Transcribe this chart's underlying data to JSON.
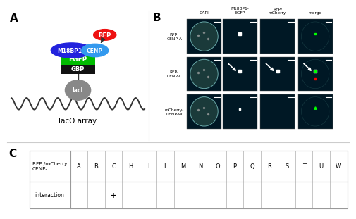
{
  "panel_A_label": "A",
  "panel_B_label": "B",
  "panel_C_label": "C",
  "col_headers": [
    "DAPI",
    "M18BP1-\nEGFP",
    "RFP/\nmCherry",
    "merge"
  ],
  "row_labels": [
    "RFP-\nCENP-A",
    "RFP-\nCENP-C",
    "mCherry-\nCENP-W"
  ],
  "table_col_header1": "RFP /mCherry\nCENP-",
  "table_cenp_letters": [
    "A",
    "B",
    "C",
    "H",
    "I",
    "L",
    "M",
    "N",
    "O",
    "P",
    "Q",
    "R",
    "S",
    "T",
    "U",
    "W"
  ],
  "table_interaction_label": "interaction",
  "table_interaction_values": [
    "-",
    "-",
    "+",
    "-",
    "-",
    "-",
    "-",
    "-",
    "-",
    "-",
    "-",
    "-",
    "-",
    "-",
    "-",
    "-"
  ],
  "laco_label": "lacO array",
  "laci_label": "lacI",
  "egfp_color": "#00bb00",
  "gbp_color": "#111111",
  "m18bp1_color": "#2222dd",
  "rfp_color": "#ee1111",
  "cenp_color": "#3399ee",
  "laci_color": "#888888",
  "bg_color": "#ffffff",
  "table_border_color": "#999999",
  "image_bg": "#001825",
  "dapi_cell_color": "#507878",
  "divider_color": "#cccccc"
}
